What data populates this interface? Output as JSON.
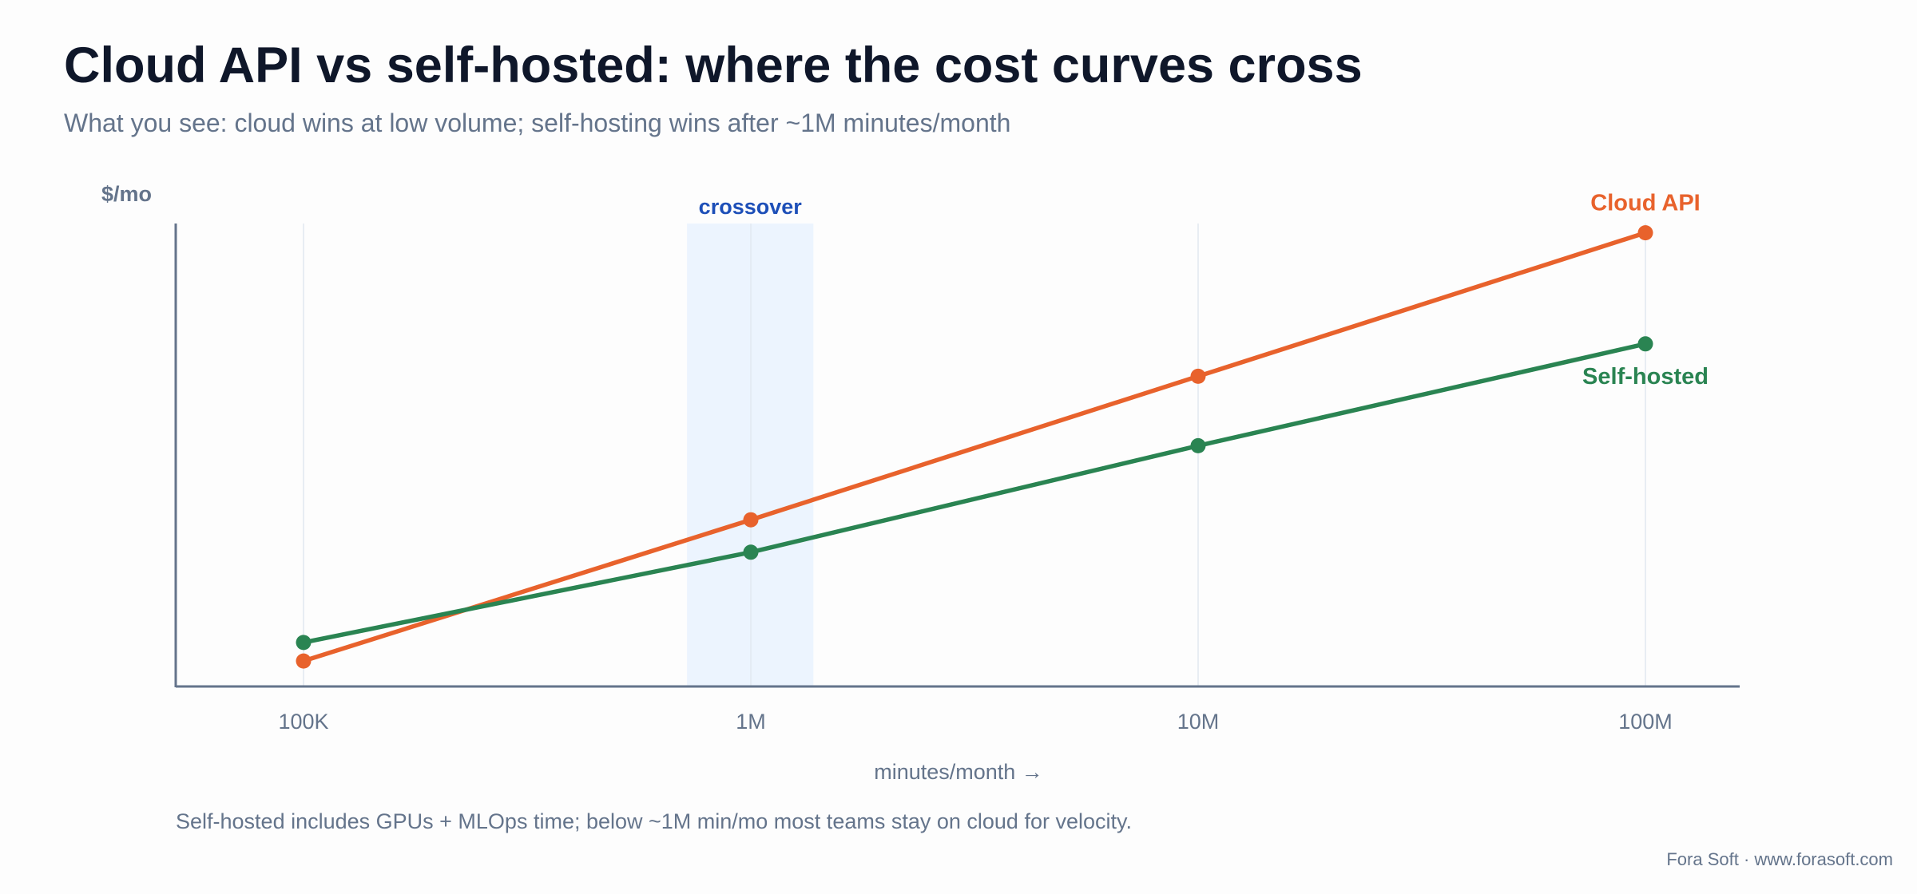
{
  "header": {
    "title": "Cloud API vs self-hosted: where the cost curves cross",
    "subtitle": "What you see: cloud wins at low volume; self-hosting wins after ~1M minutes/month"
  },
  "chart_data": {
    "type": "line",
    "title": "Cloud API vs self-hosted: where the cost curves cross",
    "xlabel": "minutes/month →",
    "ylabel": "$/mo",
    "x_scale": "log",
    "categories": [
      "100K",
      "1M",
      "10M",
      "100M"
    ],
    "x": [
      100000,
      1000000,
      10000000,
      100000000
    ],
    "ylim": [
      0,
      100
    ],
    "y_ticks_shown": false,
    "grid": "vertical",
    "highlight": {
      "label": "crossover",
      "x_range": [
        720000,
        1380000
      ]
    },
    "series": [
      {
        "name": "Cloud API",
        "color": "#e8622c",
        "values": [
          5.5,
          36,
          67,
          98
        ]
      },
      {
        "name": "Self-hosted",
        "color": "#2a8452",
        "values": [
          9.5,
          29,
          52,
          74
        ]
      }
    ]
  },
  "footnote": "Self-hosted includes GPUs + MLOps time; below ~1M min/mo most teams stay on cloud for velocity.",
  "credit": "Fora Soft · www.forasoft.com",
  "colors": {
    "axis": "#64748b",
    "grid": "#e2e8f0",
    "highlight_fill": "#ecf4fe",
    "highlight_text": "#1d4fb8",
    "text_muted": "#64748b",
    "title": "#0f172a"
  }
}
